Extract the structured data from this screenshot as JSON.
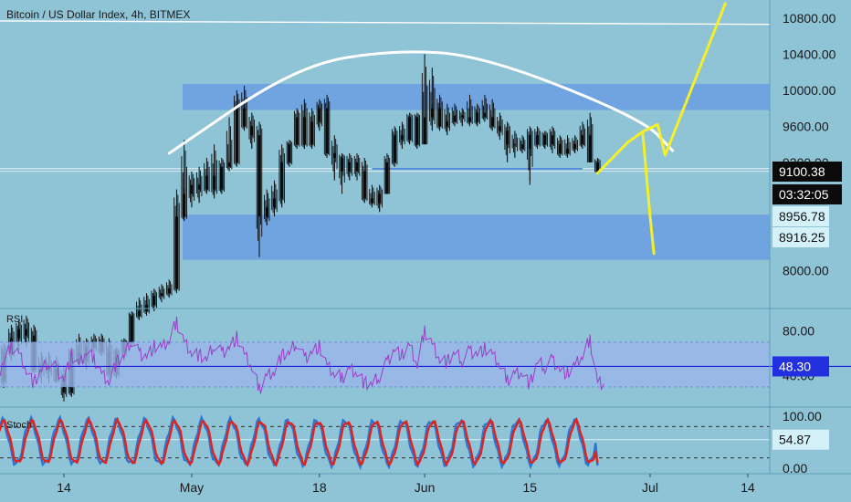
{
  "colors": {
    "background": "#8fc3d6",
    "pane_border": "#5e9fb7",
    "zone_fill": "#6a9fe3",
    "candle": "#0b0b0b",
    "arc": "#ffffff",
    "trendline": "#ffffff",
    "projection": "#f5ef2a",
    "rsi_line": "#9b3ec7",
    "rsi_band": "#9ab6ea",
    "rsi_mid": "#1a1ae0",
    "stoch_k": "#2a76d6",
    "stoch_d": "#e0231d",
    "tag_dark": "#0b0b0b",
    "tag_light": "#d4f1f9",
    "tag_blue": "#2330e0"
  },
  "header": {
    "title": "Bitcoin / US Dollar Index, 4h, BITMEX"
  },
  "chart_data": [
    {
      "type": "candlestick",
      "pane": "price",
      "title": "Bitcoin / US Dollar Index, 4h, BITMEX",
      "ylim": [
        7580,
        11000
      ],
      "y_ticks": [
        {
          "label": "10800.00",
          "value": 10800
        },
        {
          "label": "10400.00",
          "value": 10400
        },
        {
          "label": "10000.00",
          "value": 10000
        },
        {
          "label": "9600.00",
          "value": 9600
        },
        {
          "label": "9200.00",
          "value": 9200
        },
        {
          "label": "8000.00",
          "value": 8000
        }
      ],
      "x_ticks": [
        {
          "label": "14",
          "value": "Apr 14"
        },
        {
          "label": "May",
          "value": "May 1"
        },
        {
          "label": "18",
          "value": "May 18"
        },
        {
          "label": "Jun",
          "value": "Jun 1"
        },
        {
          "label": "15",
          "value": "Jun 15"
        },
        {
          "label": "Jul",
          "value": "Jul 1"
        },
        {
          "label": "14",
          "value": "Jul 14"
        }
      ],
      "price_tags": [
        {
          "label": "9100.38",
          "value": 9100.38,
          "style": "dark"
        },
        {
          "label": "03:32:05",
          "value": 9030,
          "style": "dark"
        },
        {
          "label": "8956.78",
          "value": 8956.78,
          "style": "light"
        },
        {
          "label": "8916.25",
          "value": 8916.25,
          "style": "light"
        }
      ],
      "zones": [
        {
          "from": 9780,
          "to": 10070
        },
        {
          "from": 8120,
          "to": 8620
        }
      ],
      "levels": [
        9130,
        9100.38
      ],
      "support_segment": {
        "x": [
          "May 25",
          "Jun 22"
        ],
        "y": 9130
      },
      "arc": {
        "x": [
          "Apr 28",
          "May 15",
          "May 28",
          "Jun 9",
          "Jun 30",
          "Jul 4"
        ],
        "y": [
          9300,
          10270,
          10450,
          10380,
          9680,
          9330
        ]
      },
      "upper_line": {
        "x": [
          "Apr 1",
          "Jul 17"
        ],
        "y": [
          10770,
          10730
        ]
      },
      "projection_up": {
        "x": [
          "Jun 24",
          "Jun 28",
          "Jun 30",
          "Jul 2",
          "Jul 3",
          "Jul 11"
        ],
        "y": [
          9080,
          9420,
          9540,
          9620,
          9280,
          10960
        ]
      },
      "projection_down": {
        "x": [
          "Jun 30",
          "Jul 1",
          "Jul 1.5"
        ],
        "y": [
          9540,
          8600,
          8190
        ]
      },
      "candles": {
        "x": [
          "Apr 1",
          "Apr 2",
          "Apr 3",
          "Apr 4",
          "Apr 5",
          "Apr 6",
          "Apr 7",
          "Apr 8",
          "Apr 9",
          "Apr 10",
          "Apr 11",
          "Apr 12",
          "Apr 13",
          "Apr 14",
          "Apr 15",
          "Apr 16",
          "Apr 17",
          "Apr 18",
          "Apr 19",
          "Apr 20",
          "Apr 21",
          "Apr 22",
          "Apr 23",
          "Apr 24",
          "Apr 25",
          "Apr 26",
          "Apr 27",
          "Apr 28",
          "Apr 29",
          "Apr 30",
          "May 1",
          "May 2",
          "May 3",
          "May 4",
          "May 5",
          "May 6",
          "May 7",
          "May 8",
          "May 9",
          "May 10",
          "May 11",
          "May 12",
          "May 13",
          "May 14",
          "May 15",
          "May 16",
          "May 17",
          "May 18",
          "May 19",
          "May 20",
          "May 21",
          "May 22",
          "May 23",
          "May 24",
          "May 25",
          "May 26",
          "May 27",
          "May 28",
          "May 29",
          "May 30",
          "May 31",
          "Jun 1",
          "Jun 2",
          "Jun 3",
          "Jun 4",
          "Jun 5",
          "Jun 6",
          "Jun 7",
          "Jun 8",
          "Jun 9",
          "Jun 10",
          "Jun 11",
          "Jun 12",
          "Jun 13",
          "Jun 14",
          "Jun 15",
          "Jun 16",
          "Jun 17",
          "Jun 18",
          "Jun 19",
          "Jun 20",
          "Jun 21",
          "Jun 22",
          "Jun 23",
          "Jun 24"
        ],
        "open": [
          6650,
          6800,
          6750,
          6800,
          6850,
          6780,
          7100,
          7250,
          7350,
          7280,
          6900,
          6900,
          6900,
          6780,
          6650,
          7100,
          7000,
          7150,
          7200,
          7100,
          6850,
          7100,
          7200,
          7500,
          7550,
          7620,
          7720,
          7750,
          7800,
          8600,
          8850,
          8950,
          8900,
          9050,
          8900,
          9150,
          9200,
          9800,
          9600,
          9500,
          8600,
          8700,
          8800,
          9200,
          9400,
          9700,
          9400,
          9650,
          9800,
          9300,
          9250,
          9100,
          9200,
          9100,
          8800,
          8750,
          8850,
          9200,
          9500,
          9450,
          9700,
          9400,
          9700,
          9800,
          9600,
          9650,
          9720,
          9700,
          9650,
          9750,
          9700,
          9600,
          9550,
          9400,
          9400,
          9350,
          9500,
          9400,
          9500,
          9400,
          9300,
          9350,
          9400,
          9500,
          9200
        ],
        "high": [
          6900,
          7000,
          7000,
          7100,
          7150,
          7200,
          7400,
          7450,
          7500,
          7400,
          7100,
          7100,
          7050,
          6950,
          7150,
          7300,
          7250,
          7300,
          7300,
          7250,
          7150,
          7250,
          7550,
          7700,
          7750,
          7800,
          7850,
          7900,
          8900,
          9450,
          9100,
          9150,
          9250,
          9400,
          9250,
          9700,
          10000,
          10050,
          9750,
          9650,
          8900,
          9000,
          9400,
          9450,
          9800,
          9900,
          9800,
          9900,
          9950,
          9500,
          9300,
          9300,
          9300,
          9250,
          8950,
          8950,
          9300,
          9600,
          9650,
          9750,
          9750,
          10400,
          10250,
          9950,
          9850,
          9850,
          9800,
          9950,
          9850,
          9950,
          9900,
          9750,
          9650,
          9550,
          9500,
          9600,
          9600,
          9550,
          9600,
          9500,
          9500,
          9500,
          9650,
          9750,
          9250
        ],
        "low": [
          6550,
          6650,
          6650,
          6700,
          6700,
          6700,
          7000,
          7100,
          7150,
          6850,
          6750,
          6750,
          6750,
          6550,
          6600,
          6950,
          6900,
          7050,
          7050,
          6800,
          6800,
          7000,
          7150,
          7450,
          7500,
          7550,
          7650,
          7700,
          7750,
          8550,
          8700,
          8750,
          8850,
          8800,
          8850,
          9100,
          9150,
          9550,
          9350,
          8150,
          8500,
          8600,
          8700,
          9150,
          9350,
          9350,
          9350,
          9550,
          9250,
          9000,
          8850,
          9000,
          9000,
          8750,
          8700,
          8650,
          8850,
          9150,
          9350,
          9400,
          9350,
          9400,
          9550,
          9550,
          9500,
          9600,
          9600,
          9600,
          9600,
          9650,
          9550,
          9450,
          9200,
          9250,
          9300,
          8950,
          9350,
          9350,
          9300,
          9250,
          9250,
          9300,
          9350,
          9200,
          9080
        ],
        "close": [
          6800,
          6750,
          6800,
          6850,
          6780,
          7100,
          7250,
          7350,
          7280,
          6900,
          6900,
          6900,
          6780,
          6650,
          7100,
          7000,
          7150,
          7200,
          7100,
          6850,
          7100,
          7200,
          7500,
          7550,
          7620,
          7720,
          7750,
          7800,
          8600,
          8850,
          8950,
          8900,
          9050,
          8900,
          9150,
          9200,
          9800,
          9600,
          9500,
          8600,
          8700,
          8800,
          9200,
          9400,
          9700,
          9400,
          9650,
          9800,
          9300,
          9250,
          9100,
          9200,
          9100,
          8800,
          8750,
          8850,
          9200,
          9500,
          9450,
          9700,
          9400,
          9700,
          9800,
          9600,
          9650,
          9720,
          9700,
          9650,
          9750,
          9700,
          9600,
          9550,
          9400,
          9400,
          9350,
          9500,
          9400,
          9500,
          9400,
          9300,
          9350,
          9400,
          9500,
          9200,
          9100
        ]
      }
    },
    {
      "type": "line",
      "pane": "indicator",
      "title": "RSI",
      "ylim": [
        12,
        100
      ],
      "y_ticks": [
        {
          "label": "80.00",
          "value": 80
        },
        {
          "label": "40.00",
          "value": 40
        }
      ],
      "band": [
        30,
        70
      ],
      "midline": 48.3,
      "price_tags": [
        {
          "label": "48.30",
          "value": 48.3,
          "style": "blue"
        }
      ],
      "series": [
        {
          "x": [
            "Apr 1",
            "Apr 2",
            "Apr 3",
            "Apr 4",
            "Apr 5",
            "Apr 6",
            "Apr 7",
            "Apr 8",
            "Apr 9",
            "Apr 10",
            "Apr 11",
            "Apr 12",
            "Apr 13",
            "Apr 14",
            "Apr 15",
            "Apr 16",
            "Apr 17",
            "Apr 18",
            "Apr 19",
            "Apr 20",
            "Apr 21",
            "Apr 22",
            "Apr 23",
            "Apr 24",
            "Apr 25",
            "Apr 26",
            "Apr 27",
            "Apr 28",
            "Apr 29",
            "Apr 30",
            "May 1",
            "May 2",
            "May 3",
            "May 4",
            "May 5",
            "May 6",
            "May 7",
            "May 8",
            "May 9",
            "May 10",
            "May 11",
            "May 12",
            "May 13",
            "May 14",
            "May 15",
            "May 16",
            "May 17",
            "May 18",
            "May 19",
            "May 20",
            "May 21",
            "May 22",
            "May 23",
            "May 24",
            "May 25",
            "May 26",
            "May 27",
            "May 28",
            "May 29",
            "May 30",
            "May 31",
            "Jun 1",
            "Jun 2",
            "Jun 3",
            "Jun 4",
            "Jun 5",
            "Jun 6",
            "Jun 7",
            "Jun 8",
            "Jun 9",
            "Jun 10",
            "Jun 11",
            "Jun 12",
            "Jun 13",
            "Jun 14",
            "Jun 15",
            "Jun 16",
            "Jun 17",
            "Jun 18",
            "Jun 19",
            "Jun 20",
            "Jun 21",
            "Jun 22",
            "Jun 23",
            "Jun 24"
          ],
          "values": [
            60,
            74,
            58,
            50,
            35,
            54,
            66,
            60,
            46,
            33,
            45,
            52,
            46,
            37,
            58,
            48,
            62,
            55,
            42,
            36,
            52,
            57,
            72,
            60,
            58,
            66,
            64,
            72,
            88,
            70,
            62,
            58,
            54,
            68,
            60,
            66,
            74,
            58,
            48,
            28,
            40,
            45,
            58,
            60,
            70,
            55,
            62,
            66,
            48,
            42,
            38,
            46,
            44,
            33,
            32,
            40,
            52,
            64,
            58,
            66,
            50,
            80,
            68,
            56,
            52,
            60,
            54,
            62,
            60,
            64,
            58,
            50,
            36,
            42,
            44,
            32,
            52,
            48,
            54,
            46,
            42,
            48,
            58,
            72,
            34
          ]
        }
      ]
    },
    {
      "type": "line",
      "pane": "indicator",
      "title": "Stoch",
      "ylim": [
        0,
        100
      ],
      "y_ticks": [
        {
          "label": "100.00",
          "value": 100
        },
        {
          "label": "0.00",
          "value": 0
        }
      ],
      "bounds": [
        20,
        80
      ],
      "price_tags": [
        {
          "label": "54.87",
          "value": 54.87,
          "style": "light"
        }
      ],
      "series": [
        {
          "x": [
            "Apr 1",
            "Jun 24"
          ],
          "values": [
            45,
            54.87
          ],
          "note_points": 85
        },
        {
          "x": [
            "Apr 1",
            "Jun 24"
          ],
          "values": [
            45,
            54.87
          ],
          "note_points": 85
        }
      ]
    }
  ]
}
